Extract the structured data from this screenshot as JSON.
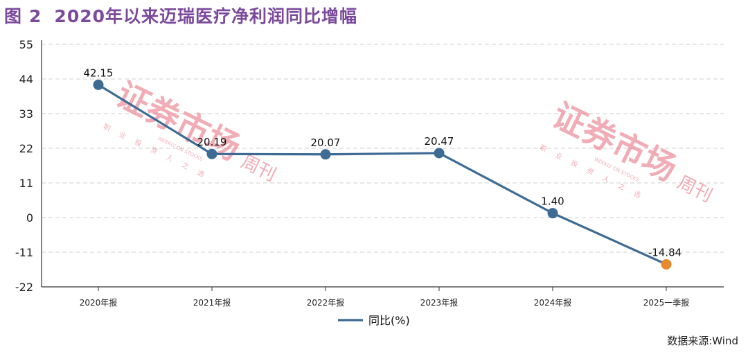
{
  "figure": {
    "label": "图",
    "number": "2",
    "title": "2020年以来迈瑞医疗净利润同比增幅"
  },
  "source_text": "数据来源:Wind",
  "watermark": {
    "main": "证券市场",
    "side": "周刊",
    "sub": "职 业 投 资 人 之 选",
    "en": "WEEKLY ON STOCKS"
  },
  "colors": {
    "title": "#7b4a9c",
    "line": "#3d6b94",
    "point": "#3d6b94",
    "last_point": "#e8892c",
    "watermark": "#e8697a",
    "grid": "#cfcfcf"
  },
  "chart_data": {
    "type": "line",
    "categories": [
      "2020年报",
      "2021年报",
      "2022年报",
      "2023年报",
      "2024年报",
      "2025一季报"
    ],
    "series": [
      {
        "name": "同比(%)",
        "values": [
          42.15,
          20.19,
          20.07,
          20.47,
          1.4,
          -14.84
        ]
      }
    ],
    "data_labels": [
      "42.15",
      "20.19",
      "20.07",
      "20.47",
      "1.40",
      "-14.84"
    ],
    "yticks": [
      55,
      44,
      33,
      22,
      11,
      0,
      -11,
      -22
    ],
    "ylim": [
      -22,
      55
    ],
    "grid": true,
    "legend": "bottom-center"
  }
}
